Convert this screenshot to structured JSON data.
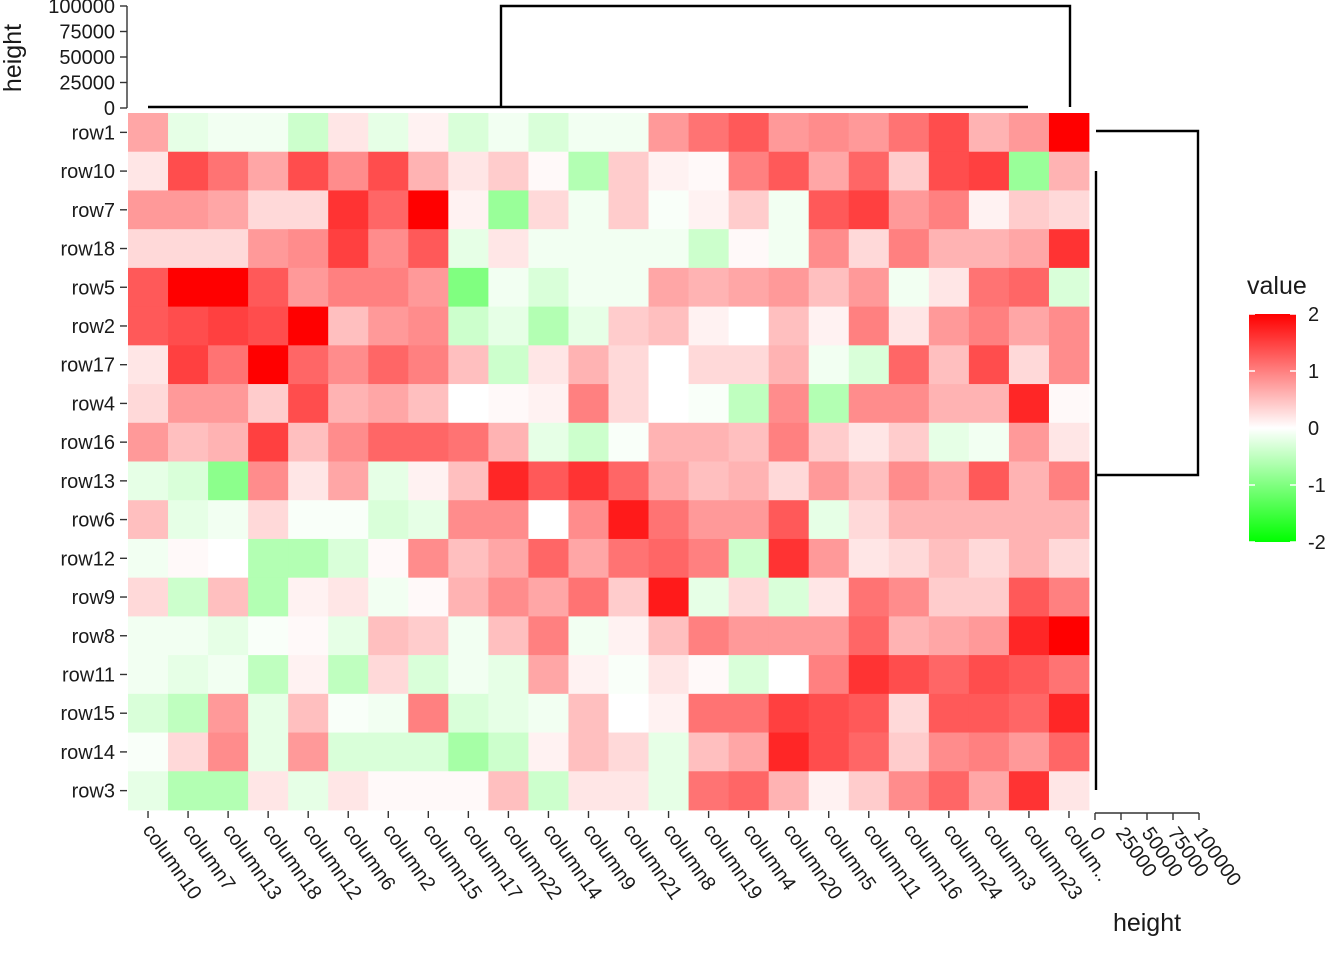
{
  "chart_data": {
    "type": "heatmap",
    "rows": [
      "row1",
      "row10",
      "row7",
      "row18",
      "row5",
      "row2",
      "row17",
      "row4",
      "row16",
      "row13",
      "row6",
      "row12",
      "row9",
      "row8",
      "row11",
      "row15",
      "row14",
      "row3"
    ],
    "columns": [
      "column10",
      "column7",
      "column13",
      "column18",
      "column12",
      "column6",
      "column2",
      "column15",
      "column17",
      "column22",
      "column14",
      "column9",
      "column21",
      "column8",
      "column19",
      "column4",
      "column20",
      "column5",
      "column11",
      "column16",
      "column24",
      "column3",
      "column23",
      "colum.."
    ],
    "values": [
      [
        0.7,
        -0.2,
        -0.1,
        -0.1,
        -0.4,
        0.2,
        -0.2,
        0.1,
        -0.3,
        -0.1,
        -0.3,
        -0.1,
        -0.1,
        0.8,
        1.1,
        1.3,
        0.8,
        0.9,
        0.8,
        1.1,
        1.4,
        0.6,
        0.8,
        2.0
      ],
      [
        0.2,
        1.4,
        1.1,
        0.7,
        1.4,
        0.9,
        1.4,
        0.6,
        0.2,
        0.4,
        0.05,
        -0.6,
        0.4,
        0.1,
        0.05,
        1.0,
        1.3,
        0.7,
        1.2,
        0.4,
        1.4,
        1.5,
        -0.8,
        0.6
      ],
      [
        0.8,
        0.8,
        0.7,
        0.3,
        0.3,
        1.6,
        1.2,
        2.0,
        0.1,
        -0.8,
        0.3,
        -0.1,
        0.4,
        -0.05,
        0.1,
        0.4,
        -0.1,
        1.3,
        1.5,
        0.8,
        1.0,
        0.1,
        0.4,
        0.3
      ],
      [
        0.3,
        0.3,
        0.3,
        0.8,
        0.9,
        1.5,
        0.9,
        1.3,
        -0.2,
        0.2,
        -0.1,
        -0.1,
        -0.1,
        -0.1,
        -0.4,
        0.05,
        -0.1,
        0.9,
        0.3,
        1.0,
        0.6,
        0.6,
        0.7,
        1.6
      ],
      [
        1.3,
        2.0,
        2.0,
        1.3,
        0.8,
        1.0,
        1.0,
        0.8,
        -1.0,
        -0.1,
        -0.3,
        -0.1,
        -0.1,
        0.7,
        0.6,
        0.7,
        0.8,
        0.5,
        0.8,
        -0.1,
        0.2,
        1.1,
        1.2,
        -0.3
      ],
      [
        1.3,
        1.4,
        1.5,
        1.4,
        2.0,
        0.5,
        0.8,
        0.9,
        -0.4,
        -0.2,
        -0.6,
        -0.2,
        0.4,
        0.5,
        0.1,
        0.0,
        0.5,
        0.1,
        1.0,
        0.2,
        0.8,
        1.0,
        0.7,
        0.9
      ],
      [
        0.2,
        1.5,
        1.1,
        2.0,
        1.2,
        0.9,
        1.2,
        1.0,
        0.5,
        -0.4,
        0.2,
        0.6,
        0.3,
        0.0,
        0.3,
        0.3,
        0.6,
        -0.1,
        -0.3,
        1.2,
        0.5,
        1.4,
        0.3,
        0.9
      ],
      [
        0.3,
        0.8,
        0.8,
        0.4,
        1.4,
        0.6,
        0.7,
        0.5,
        0.0,
        0.05,
        0.1,
        1.0,
        0.3,
        0.0,
        -0.05,
        -0.5,
        0.9,
        -0.6,
        0.9,
        0.9,
        0.6,
        0.6,
        1.7,
        0.05
      ],
      [
        0.8,
        0.5,
        0.6,
        1.5,
        0.5,
        0.9,
        1.2,
        1.2,
        1.1,
        0.6,
        -0.2,
        -0.4,
        -0.05,
        0.6,
        0.6,
        0.5,
        1.0,
        0.4,
        0.2,
        0.4,
        -0.2,
        -0.1,
        0.8,
        0.2
      ],
      [
        -0.2,
        -0.3,
        -0.9,
        0.9,
        0.2,
        0.7,
        -0.2,
        0.1,
        0.5,
        1.7,
        1.3,
        1.6,
        1.2,
        0.7,
        0.5,
        0.6,
        0.3,
        0.8,
        0.5,
        0.9,
        0.7,
        1.3,
        0.6,
        1.0
      ],
      [
        0.5,
        -0.2,
        -0.1,
        0.3,
        -0.05,
        -0.05,
        -0.3,
        -0.2,
        0.9,
        0.9,
        0.0,
        0.9,
        1.8,
        1.1,
        0.8,
        0.8,
        1.3,
        -0.2,
        0.3,
        0.6,
        0.6,
        0.6,
        0.6,
        0.6
      ],
      [
        -0.1,
        0.05,
        0.0,
        -0.6,
        -0.6,
        -0.3,
        0.05,
        0.9,
        0.5,
        0.7,
        1.2,
        0.7,
        1.1,
        1.2,
        1.0,
        -0.4,
        1.6,
        0.8,
        0.2,
        0.3,
        0.5,
        0.3,
        0.6,
        0.3
      ],
      [
        0.3,
        -0.4,
        0.5,
        -0.6,
        0.1,
        0.2,
        -0.1,
        0.05,
        0.6,
        0.9,
        0.7,
        1.1,
        0.4,
        1.8,
        -0.2,
        0.3,
        -0.3,
        0.2,
        1.1,
        0.9,
        0.4,
        0.4,
        1.3,
        1.0
      ],
      [
        -0.1,
        -0.1,
        -0.2,
        -0.05,
        0.05,
        -0.2,
        0.5,
        0.4,
        -0.1,
        0.5,
        1.0,
        -0.1,
        0.1,
        0.5,
        1.0,
        0.8,
        0.8,
        0.8,
        1.2,
        0.6,
        0.7,
        0.8,
        1.7,
        2.0
      ],
      [
        -0.1,
        -0.2,
        -0.1,
        -0.5,
        0.1,
        -0.5,
        0.3,
        -0.3,
        -0.1,
        -0.2,
        0.7,
        0.1,
        -0.05,
        0.2,
        0.05,
        -0.3,
        0.0,
        1.0,
        1.6,
        1.4,
        1.2,
        1.4,
        1.3,
        1.1
      ],
      [
        -0.3,
        -0.5,
        0.8,
        -0.2,
        0.5,
        -0.05,
        -0.1,
        1.0,
        -0.3,
        -0.2,
        -0.1,
        0.5,
        0.0,
        0.1,
        1.1,
        1.1,
        1.5,
        1.4,
        1.3,
        0.3,
        1.3,
        1.3,
        1.2,
        1.7
      ],
      [
        -0.05,
        0.3,
        0.9,
        -0.2,
        0.8,
        -0.3,
        -0.3,
        -0.3,
        -0.7,
        -0.4,
        0.1,
        0.5,
        0.3,
        -0.2,
        0.5,
        0.7,
        1.7,
        1.4,
        1.2,
        0.4,
        0.9,
        1.0,
        0.8,
        1.2
      ],
      [
        -0.2,
        -0.6,
        -0.6,
        0.2,
        -0.2,
        0.2,
        0.05,
        0.05,
        0.05,
        0.5,
        -0.4,
        0.2,
        0.2,
        -0.2,
        1.1,
        1.2,
        0.6,
        0.1,
        0.4,
        0.9,
        1.2,
        0.7,
        1.6,
        0.2
      ]
    ],
    "color_scale": {
      "min": -2,
      "max": 2,
      "low_color": "#00ff00",
      "mid_color": "#ffffff",
      "high_color": "#ff0000",
      "breaks": [
        "2",
        "1",
        "0",
        "-1",
        "-2"
      ],
      "title": "value"
    },
    "col_dendrogram": {
      "axis_label": "height",
      "ticks": [
        "0",
        "25000",
        "50000",
        "75000",
        "100000"
      ],
      "max": 100000
    },
    "row_dendrogram": {
      "axis_label": "height",
      "ticks": [
        "0",
        "25000",
        "50000",
        "75000",
        "100000"
      ],
      "max": 100000
    }
  }
}
